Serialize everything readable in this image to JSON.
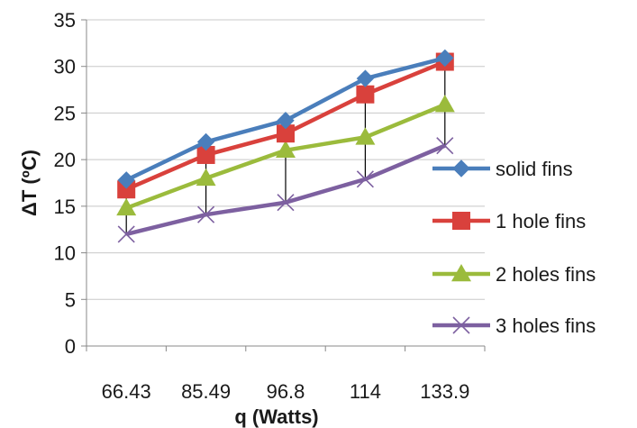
{
  "chart_data": {
    "type": "line",
    "title": "",
    "xlabel": "q (Watts)",
    "ylabel": "ΔT (ºC)",
    "categories": [
      "66.43",
      "85.49",
      "96.8",
      "114",
      "133.9"
    ],
    "ylim": [
      0,
      35
    ],
    "yticks": [
      "0",
      "5",
      "10",
      "15",
      "20",
      "25",
      "30",
      "35"
    ],
    "grid": "horizontal",
    "legend_position": "right",
    "error_bars": "vertical drop lines from the highest to the lowest series at each category",
    "series": [
      {
        "name": "solid fins",
        "values": [
          17.8,
          21.9,
          24.2,
          28.7,
          30.9
        ],
        "color": "#4a7ebb",
        "marker": "diamond"
      },
      {
        "name": "1 hole fins",
        "values": [
          16.8,
          20.5,
          22.8,
          27.0,
          30.5
        ],
        "color": "#d9413c",
        "marker": "square"
      },
      {
        "name": "2 holes fins",
        "values": [
          14.8,
          18.0,
          21.0,
          22.4,
          25.9
        ],
        "color": "#9bbb3c",
        "marker": "triangle"
      },
      {
        "name": "3 holes fins",
        "values": [
          12.0,
          14.1,
          15.4,
          17.9,
          21.5
        ],
        "color": "#7d60a0",
        "marker": "x"
      }
    ]
  }
}
